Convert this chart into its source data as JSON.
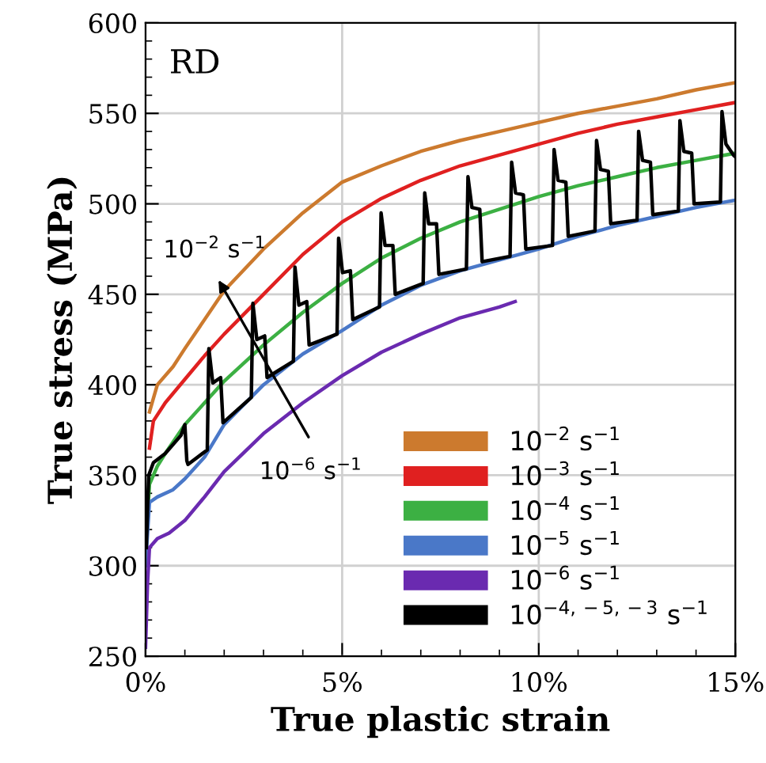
{
  "chart_data": {
    "type": "line",
    "ylabel": "True stress (MPa)",
    "xlabel": "True plastic strain",
    "xlim": [
      0,
      15
    ],
    "ylim": [
      250,
      600
    ],
    "xticks": [
      {
        "value": 0,
        "label": "0%"
      },
      {
        "value": 5,
        "label": "5%"
      },
      {
        "value": 10,
        "label": "10%"
      },
      {
        "value": 15,
        "label": "15%"
      }
    ],
    "yticks": [
      250,
      300,
      350,
      400,
      450,
      500,
      550,
      600
    ],
    "grid": true,
    "legend": "bottom right",
    "marker": "none",
    "line_style": "solid",
    "annotations": [
      "RD",
      "10$^{−2}$ s$^{−1}$",
      "10$^{−6}$ s$^{−1}$"
    ],
    "series": [
      {
        "name": "10$^{−2}$ s$^{−1}$",
        "color": "#cc7a2e",
        "x": [
          0.1,
          0.3,
          0.7,
          1,
          2,
          3,
          4,
          5,
          6,
          7,
          8,
          9,
          10,
          11,
          12,
          13,
          14,
          15
        ],
        "values": [
          385,
          400,
          410,
          420,
          452,
          475,
          495,
          512,
          521,
          529,
          535,
          540,
          545,
          550,
          554,
          558,
          563,
          567
        ]
      },
      {
        "name": "10$^{−3}$ s$^{−1}$",
        "color": "#e02020",
        "x": [
          0.1,
          0.2,
          0.5,
          1,
          1.5,
          2,
          3,
          4,
          5,
          6,
          7,
          8,
          9,
          10,
          11,
          12,
          13,
          14,
          15
        ],
        "values": [
          365,
          380,
          390,
          403,
          416,
          428,
          450,
          472,
          490,
          503,
          513,
          521,
          527,
          533,
          539,
          544,
          548,
          552,
          556
        ]
      },
      {
        "name": "10$^{−4}$ s$^{−1}$",
        "color": "#3cb043",
        "x": [
          0,
          0.1,
          0.3,
          0.5,
          1,
          1.5,
          2,
          3,
          4,
          5,
          6,
          7,
          8,
          9,
          10,
          11,
          12,
          13,
          14,
          15
        ],
        "values": [
          310,
          345,
          355,
          362,
          378,
          390,
          402,
          422,
          440,
          456,
          470,
          481,
          490,
          497,
          504,
          510,
          515,
          520,
          524,
          528
        ]
      },
      {
        "name": "10$^{−5}$ s$^{−1}$",
        "color": "#4a78c8",
        "x": [
          0,
          0.1,
          0.3,
          0.7,
          1,
          1.5,
          2,
          3,
          4,
          5,
          6,
          7,
          8,
          9,
          10,
          11,
          12,
          13,
          14,
          15
        ],
        "values": [
          300,
          335,
          338,
          342,
          348,
          360,
          378,
          400,
          417,
          430,
          444,
          455,
          463,
          469,
          475,
          482,
          488,
          493,
          498,
          502
        ]
      },
      {
        "name": "10$^{−6}$ s$^{−1}$",
        "color": "#6a2ab0",
        "x": [
          0,
          0.05,
          0.1,
          0.3,
          0.6,
          1,
          1.5,
          2,
          3,
          4,
          5,
          6,
          7,
          8,
          9,
          9.4
        ],
        "values": [
          255,
          290,
          310,
          315,
          318,
          325,
          338,
          352,
          373,
          390,
          405,
          418,
          428,
          437,
          443,
          446
        ]
      },
      {
        "name": "10$^{−4,−5,−3}$ s$^{−1}$",
        "color": "#000000",
        "x": [
          0.02,
          0.08,
          0.2,
          0.5,
          0.9,
          1.0,
          1.05,
          1.08,
          1.57,
          1.61,
          1.71,
          1.91,
          1.97,
          2.69,
          2.73,
          2.83,
          3.03,
          3.09,
          3.76,
          3.8,
          3.9,
          4.1,
          4.16,
          4.87,
          4.91,
          5.01,
          5.21,
          5.27,
          5.95,
          5.99,
          6.09,
          6.29,
          6.35,
          7.06,
          7.1,
          7.2,
          7.4,
          7.46,
          8.16,
          8.2,
          8.3,
          8.5,
          8.56,
          9.27,
          9.31,
          9.41,
          9.61,
          9.67,
          10.35,
          10.39,
          10.49,
          10.69,
          10.75,
          11.43,
          11.47,
          11.57,
          11.77,
          11.83,
          12.5,
          12.54,
          12.64,
          12.84,
          12.9,
          13.55,
          13.59,
          13.69,
          13.89,
          13.95,
          14.62,
          14.66,
          14.76,
          14.95,
          15
        ],
        "values": [
          310,
          350,
          357,
          362,
          372,
          378,
          358,
          356,
          364,
          420,
          401,
          404,
          379,
          393,
          445,
          425,
          427,
          404,
          413,
          465,
          444,
          446,
          422,
          428,
          481,
          462,
          463,
          436,
          443,
          495,
          477,
          477,
          450,
          456,
          506,
          489,
          489,
          461,
          464,
          515,
          498,
          497,
          468,
          471,
          523,
          506,
          505,
          475,
          477,
          530,
          513,
          512,
          482,
          485,
          535,
          519,
          518,
          489,
          491,
          540,
          524,
          523,
          494,
          496,
          546,
          529,
          528,
          500,
          501,
          551,
          533,
          527,
          526
        ]
      }
    ]
  }
}
